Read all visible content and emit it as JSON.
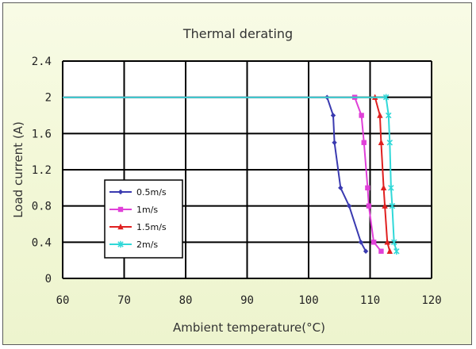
{
  "chart_data": {
    "type": "line",
    "title": "Thermal derating",
    "xlabel": "Ambient temperature(°C)",
    "ylabel": "Load current (A)",
    "xlim": [
      60,
      120
    ],
    "ylim": [
      0,
      2.4
    ],
    "xticks": [
      60,
      70,
      80,
      90,
      100,
      110,
      120
    ],
    "yticks": [
      0,
      0.4,
      0.8,
      1.2,
      1.6,
      2,
      2.4
    ],
    "xtick_labels": [
      "60",
      "70",
      "80",
      "90",
      "100",
      "110",
      "120"
    ],
    "ytick_labels": [
      "0",
      "0.4",
      "0.8",
      "1.2",
      "1.6",
      "2",
      "2.4"
    ],
    "grid": true,
    "legend_position": "left-middle",
    "series": [
      {
        "name": "0.5m/s",
        "color": "#3a3ab0",
        "marker": "diamond",
        "points": [
          [
            60,
            2
          ],
          [
            103,
            2
          ],
          [
            104,
            1.8
          ],
          [
            104.2,
            1.5
          ],
          [
            105.2,
            1.0
          ],
          [
            106.6,
            0.8
          ],
          [
            108.5,
            0.4
          ],
          [
            109.3,
            0.3
          ]
        ]
      },
      {
        "name": "1m/s",
        "color": "#e040d8",
        "marker": "square",
        "points": [
          [
            60,
            2
          ],
          [
            107.5,
            2
          ],
          [
            108.6,
            1.8
          ],
          [
            109,
            1.5
          ],
          [
            109.6,
            1.0
          ],
          [
            109.8,
            0.8
          ],
          [
            110.6,
            0.4
          ],
          [
            111.8,
            0.3
          ]
        ]
      },
      {
        "name": "1.5m/s",
        "color": "#e02020",
        "marker": "triangle",
        "points": [
          [
            60,
            2
          ],
          [
            110.8,
            2
          ],
          [
            111.6,
            1.8
          ],
          [
            111.8,
            1.5
          ],
          [
            112.2,
            1.0
          ],
          [
            112.4,
            0.8
          ],
          [
            112.8,
            0.4
          ],
          [
            113.2,
            0.3
          ]
        ]
      },
      {
        "name": "2m/s",
        "color": "#30d8d8",
        "marker": "star",
        "points": [
          [
            60,
            2
          ],
          [
            112.6,
            2
          ],
          [
            113,
            1.8
          ],
          [
            113.2,
            1.5
          ],
          [
            113.4,
            1.0
          ],
          [
            113.6,
            0.8
          ],
          [
            113.9,
            0.4
          ],
          [
            114.3,
            0.3
          ]
        ]
      }
    ]
  }
}
